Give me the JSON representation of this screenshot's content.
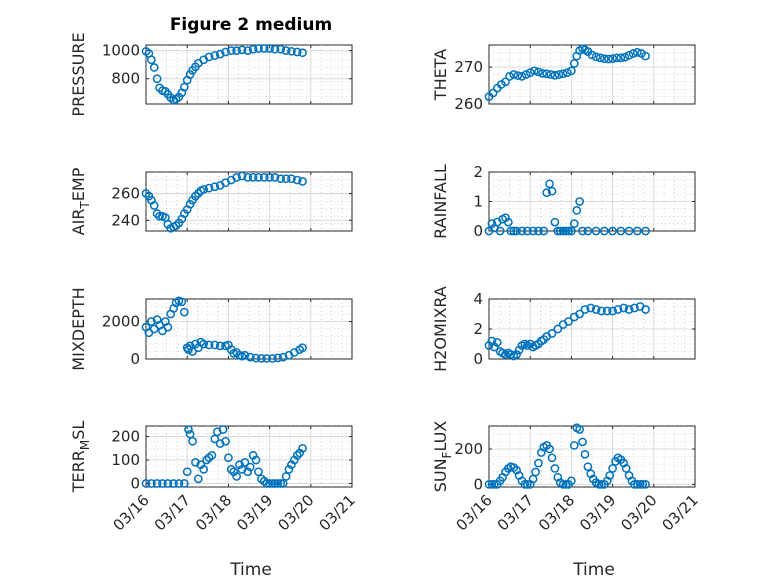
{
  "title": "Figure 2 medium",
  "colors": {
    "series": "#0072BD",
    "axis": "#262626",
    "grid": "#d9d9d9"
  },
  "shared_x": {
    "label": "Time",
    "domain": [
      "03/16",
      "03/21"
    ],
    "ticks": [
      "03/16",
      "03/17",
      "03/18",
      "03/19",
      "03/20",
      "03/21"
    ]
  },
  "chart_data": [
    {
      "type": "scatter",
      "id": "pressure",
      "ylabel": "PRESSURE",
      "ylim": [
        620,
        1040
      ],
      "yticks": [
        800,
        1000
      ],
      "x": [
        0.0,
        0.07,
        0.13,
        0.2,
        0.27,
        0.33,
        0.4,
        0.47,
        0.53,
        0.6,
        0.67,
        0.73,
        0.8,
        0.87,
        0.93,
        1.0,
        1.07,
        1.13,
        1.2,
        1.27,
        1.4,
        1.53,
        1.67,
        1.8,
        1.93,
        2.07,
        2.2,
        2.33,
        2.47,
        2.6,
        2.73,
        2.87,
        3.0,
        3.13,
        3.27,
        3.4,
        3.53,
        3.67,
        3.8
      ],
      "y": [
        995,
        980,
        935,
        880,
        800,
        735,
        715,
        710,
        690,
        665,
        648,
        655,
        670,
        700,
        740,
        790,
        830,
        860,
        885,
        910,
        935,
        955,
        965,
        975,
        990,
        1000,
        1000,
        1005,
        1000,
        1010,
        1015,
        1015,
        1015,
        1010,
        1010,
        1000,
        995,
        990,
        985
      ]
    },
    {
      "type": "scatter",
      "id": "theta",
      "ylabel": "THETA",
      "ylim": [
        260,
        276
      ],
      "yticks": [
        260,
        270
      ],
      "x": [
        0.0,
        0.1,
        0.2,
        0.3,
        0.4,
        0.5,
        0.6,
        0.7,
        0.8,
        0.9,
        1.0,
        1.1,
        1.2,
        1.3,
        1.4,
        1.5,
        1.6,
        1.7,
        1.8,
        1.9,
        2.0,
        2.07,
        2.13,
        2.2,
        2.27,
        2.33,
        2.4,
        2.5,
        2.6,
        2.7,
        2.8,
        2.9,
        3.0,
        3.1,
        3.2,
        3.3,
        3.4,
        3.5,
        3.6,
        3.7,
        3.8
      ],
      "y": [
        262,
        263,
        264.3,
        265.3,
        266,
        267.5,
        268,
        267.7,
        267.5,
        268,
        268.5,
        269,
        268.7,
        268.3,
        268.2,
        268,
        267.8,
        268,
        268.2,
        268.5,
        269,
        271,
        273,
        274.5,
        275,
        274.7,
        274.2,
        273.3,
        272.8,
        272.5,
        272.3,
        272.2,
        272.3,
        272.5,
        272.5,
        272.7,
        273.2,
        273.7,
        274,
        273.7,
        273
      ]
    },
    {
      "type": "scatter",
      "id": "air_temp",
      "ylabel": "AIR_TEMP",
      "ylim": [
        232,
        276
      ],
      "yticks": [
        240,
        260
      ],
      "x": [
        0.0,
        0.07,
        0.13,
        0.2,
        0.27,
        0.33,
        0.4,
        0.47,
        0.53,
        0.6,
        0.67,
        0.73,
        0.8,
        0.87,
        0.93,
        1.0,
        1.07,
        1.13,
        1.2,
        1.27,
        1.33,
        1.4,
        1.53,
        1.67,
        1.8,
        1.93,
        2.07,
        2.2,
        2.33,
        2.47,
        2.6,
        2.73,
        2.87,
        3.0,
        3.13,
        3.27,
        3.4,
        3.53,
        3.67,
        3.8
      ],
      "y": [
        260,
        258,
        255,
        251,
        245,
        243,
        243,
        242,
        237,
        234,
        235,
        236,
        238,
        241,
        245,
        248,
        252,
        255,
        258,
        260,
        262,
        263,
        264,
        265,
        266,
        268,
        270,
        272,
        273,
        272,
        272,
        272,
        272,
        272,
        272,
        271,
        271,
        271,
        270,
        269
      ]
    },
    {
      "type": "scatter",
      "id": "rainfall",
      "ylabel": "RAINFALL",
      "ylim": [
        0,
        2
      ],
      "yticks": [
        0,
        1,
        2
      ],
      "x": [
        0.0,
        0.07,
        0.13,
        0.2,
        0.27,
        0.33,
        0.4,
        0.47,
        0.53,
        0.6,
        0.67,
        0.8,
        0.93,
        1.07,
        1.2,
        1.33,
        1.4,
        1.47,
        1.53,
        1.6,
        1.67,
        1.73,
        1.8,
        1.87,
        1.93,
        2.0,
        2.07,
        2.13,
        2.2,
        2.27,
        2.4,
        2.6,
        2.8,
        3.0,
        3.2,
        3.4,
        3.6,
        3.8
      ],
      "y": [
        0.0,
        0.25,
        0.1,
        0.3,
        0.0,
        0.4,
        0.45,
        0.3,
        0.0,
        0.0,
        0.0,
        0.0,
        0.0,
        0.0,
        0.0,
        0.0,
        1.3,
        1.6,
        1.35,
        0.3,
        0.0,
        0.0,
        0.0,
        0.0,
        0.0,
        0.0,
        0.25,
        0.7,
        1.0,
        0.0,
        0.0,
        0.0,
        0.0,
        0.0,
        0.0,
        0.0,
        0.0,
        0.0
      ]
    },
    {
      "type": "scatter",
      "id": "mixdepth",
      "ylabel": "MIXDEPTH",
      "ylim": [
        0,
        3200
      ],
      "yticks": [
        0,
        2000
      ],
      "x": [
        0.0,
        0.07,
        0.13,
        0.2,
        0.27,
        0.33,
        0.4,
        0.47,
        0.53,
        0.6,
        0.67,
        0.73,
        0.8,
        0.87,
        0.93,
        1.0,
        1.03,
        1.07,
        1.13,
        1.2,
        1.27,
        1.33,
        1.4,
        1.53,
        1.67,
        1.8,
        1.93,
        2.0,
        2.07,
        2.13,
        2.2,
        2.27,
        2.33,
        2.4,
        2.53,
        2.67,
        2.8,
        2.93,
        3.07,
        3.2,
        3.33,
        3.47,
        3.6,
        3.73,
        3.8
      ],
      "y": [
        1700,
        1400,
        2000,
        1600,
        2100,
        1800,
        1500,
        2000,
        1700,
        2400,
        2700,
        3000,
        3100,
        3050,
        2500,
        600,
        500,
        700,
        400,
        800,
        600,
        900,
        800,
        750,
        750,
        700,
        700,
        750,
        500,
        300,
        350,
        200,
        150,
        200,
        100,
        50,
        30,
        30,
        30,
        60,
        100,
        200,
        350,
        500,
        600
      ]
    },
    {
      "type": "scatter",
      "id": "h2omixra",
      "ylabel": "H2OMIXRA",
      "ylim": [
        0,
        4
      ],
      "yticks": [
        0,
        2,
        4
      ],
      "x": [
        0.0,
        0.07,
        0.13,
        0.2,
        0.27,
        0.33,
        0.4,
        0.47,
        0.53,
        0.6,
        0.67,
        0.73,
        0.8,
        0.87,
        0.93,
        1.0,
        1.07,
        1.13,
        1.2,
        1.27,
        1.33,
        1.4,
        1.53,
        1.67,
        1.8,
        1.93,
        2.07,
        2.2,
        2.33,
        2.47,
        2.6,
        2.73,
        2.87,
        3.0,
        3.13,
        3.27,
        3.4,
        3.53,
        3.67,
        3.8
      ],
      "y": [
        0.9,
        1.2,
        0.8,
        1.1,
        0.5,
        0.4,
        0.3,
        0.4,
        0.3,
        0.2,
        0.3,
        0.6,
        0.9,
        1.0,
        0.9,
        1.0,
        0.8,
        0.9,
        1.0,
        1.2,
        1.3,
        1.5,
        1.7,
        2.0,
        2.3,
        2.5,
        2.8,
        3.0,
        3.3,
        3.4,
        3.3,
        3.2,
        3.2,
        3.2,
        3.3,
        3.4,
        3.3,
        3.4,
        3.5,
        3.3
      ]
    },
    {
      "type": "scatter",
      "id": "terr_msl",
      "ylabel": "TERR_MSL",
      "ylim": [
        -15,
        245
      ],
      "yticks": [
        0,
        100,
        200
      ],
      "x": [
        0.0,
        0.13,
        0.27,
        0.4,
        0.53,
        0.67,
        0.8,
        0.93,
        1.0,
        1.03,
        1.07,
        1.13,
        1.2,
        1.27,
        1.33,
        1.4,
        1.47,
        1.53,
        1.6,
        1.67,
        1.73,
        1.8,
        1.87,
        1.93,
        2.0,
        2.07,
        2.13,
        2.2,
        2.27,
        2.33,
        2.4,
        2.47,
        2.53,
        2.6,
        2.67,
        2.73,
        2.8,
        2.87,
        2.93,
        3.0,
        3.07,
        3.13,
        3.2,
        3.27,
        3.33,
        3.4,
        3.47,
        3.53,
        3.6,
        3.67,
        3.73,
        3.8
      ],
      "y": [
        0,
        0,
        0,
        0,
        0,
        0,
        0,
        0,
        50,
        230,
        210,
        180,
        90,
        20,
        80,
        60,
        100,
        110,
        120,
        190,
        220,
        170,
        230,
        180,
        110,
        60,
        50,
        30,
        80,
        60,
        90,
        50,
        70,
        120,
        100,
        50,
        20,
        10,
        0,
        0,
        0,
        0,
        0,
        0,
        0,
        30,
        60,
        80,
        100,
        120,
        130,
        150
      ]
    },
    {
      "type": "scatter",
      "id": "sun_flux",
      "ylabel": "SUN_FLUX",
      "ylim": [
        -15,
        330
      ],
      "yticks": [
        0,
        200
      ],
      "x": [
        0.0,
        0.07,
        0.13,
        0.2,
        0.27,
        0.33,
        0.4,
        0.47,
        0.53,
        0.6,
        0.67,
        0.73,
        0.8,
        0.87,
        0.93,
        1.0,
        1.07,
        1.13,
        1.2,
        1.27,
        1.33,
        1.4,
        1.47,
        1.53,
        1.6,
        1.67,
        1.73,
        1.8,
        1.87,
        1.93,
        2.0,
        2.07,
        2.13,
        2.2,
        2.27,
        2.33,
        2.4,
        2.47,
        2.53,
        2.6,
        2.67,
        2.73,
        2.8,
        2.87,
        2.93,
        3.0,
        3.07,
        3.13,
        3.2,
        3.27,
        3.33,
        3.4,
        3.47,
        3.53,
        3.6,
        3.67,
        3.73,
        3.8
      ],
      "y": [
        0,
        0,
        0,
        0,
        20,
        40,
        70,
        90,
        100,
        95,
        80,
        50,
        20,
        0,
        0,
        0,
        30,
        70,
        120,
        180,
        210,
        220,
        200,
        150,
        90,
        40,
        10,
        0,
        0,
        0,
        20,
        220,
        320,
        310,
        240,
        170,
        100,
        60,
        30,
        10,
        0,
        0,
        0,
        20,
        50,
        90,
        130,
        150,
        140,
        120,
        90,
        50,
        20,
        0,
        0,
        0,
        0,
        0
      ]
    }
  ]
}
